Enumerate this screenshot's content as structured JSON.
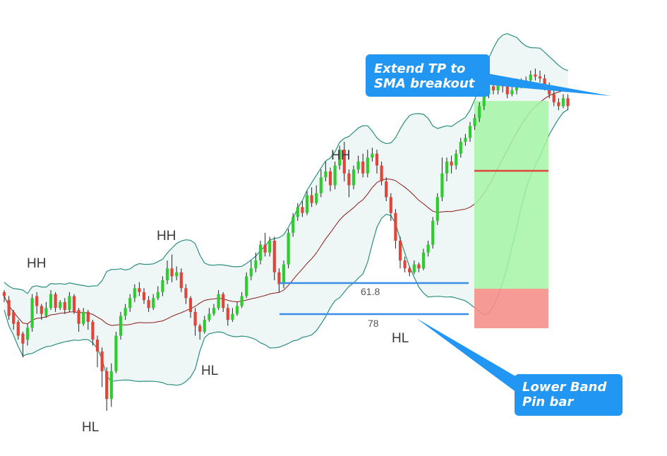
{
  "chart_data": {
    "type": "candlestick",
    "indicators": [
      "bollinger-bands",
      "sma"
    ],
    "candles": [
      [
        1.0,
        0.99,
        0.975,
        1.005
      ],
      [
        0.98,
        0.94,
        0.93,
        0.99
      ],
      [
        0.95,
        0.92,
        0.905,
        0.955
      ],
      [
        0.925,
        0.89,
        0.88,
        0.93
      ],
      [
        0.895,
        0.87,
        0.835,
        0.9
      ],
      [
        0.88,
        0.91,
        0.865,
        0.92
      ],
      [
        0.91,
        0.985,
        0.9,
        0.995
      ],
      [
        0.99,
        0.965,
        0.945,
        1.0
      ],
      [
        0.965,
        0.945,
        0.93,
        0.97
      ],
      [
        0.94,
        0.96,
        0.935,
        0.975
      ],
      [
        0.96,
        0.995,
        0.955,
        1.005
      ],
      [
        0.995,
        0.96,
        0.95,
        1.0
      ],
      [
        0.96,
        0.975,
        0.955,
        0.98
      ],
      [
        0.975,
        0.955,
        0.945,
        0.985
      ],
      [
        0.955,
        0.99,
        0.95,
        1.0
      ],
      [
        0.99,
        0.95,
        0.945,
        0.995
      ],
      [
        0.955,
        0.92,
        0.9,
        0.96
      ],
      [
        0.92,
        0.95,
        0.915,
        0.96
      ],
      [
        0.95,
        0.925,
        0.905,
        0.955
      ],
      [
        0.925,
        0.88,
        0.865,
        0.93
      ],
      [
        0.88,
        0.85,
        0.81,
        0.89
      ],
      [
        0.85,
        0.8,
        0.76,
        0.86
      ],
      [
        0.8,
        0.73,
        0.7,
        0.81
      ],
      [
        0.73,
        0.8,
        0.71,
        0.82
      ],
      [
        0.8,
        0.89,
        0.795,
        0.9
      ],
      [
        0.89,
        0.94,
        0.88,
        0.95
      ],
      [
        0.94,
        0.96,
        0.93,
        0.97
      ],
      [
        0.96,
        0.985,
        0.95,
        0.995
      ],
      [
        0.985,
        1.01,
        0.975,
        1.02
      ],
      [
        1.01,
        1.0,
        0.99,
        1.025
      ],
      [
        1.0,
        0.98,
        0.97,
        1.01
      ],
      [
        0.98,
        0.96,
        0.95,
        0.99
      ],
      [
        0.96,
        0.985,
        0.955,
        0.995
      ],
      [
        0.985,
        1.0,
        0.98,
        1.015
      ],
      [
        1.0,
        1.03,
        0.99,
        1.04
      ],
      [
        1.03,
        1.06,
        1.02,
        1.08
      ],
      [
        1.06,
        1.04,
        1.025,
        1.095
      ],
      [
        1.04,
        1.05,
        1.03,
        1.065
      ],
      [
        1.05,
        1.01,
        1.0,
        1.06
      ],
      [
        1.01,
        0.985,
        0.97,
        1.02
      ],
      [
        0.985,
        0.95,
        0.935,
        0.99
      ],
      [
        0.95,
        0.915,
        0.89,
        0.96
      ],
      [
        0.915,
        0.9,
        0.88,
        0.92
      ],
      [
        0.9,
        0.93,
        0.895,
        0.94
      ],
      [
        0.93,
        0.945,
        0.925,
        0.96
      ],
      [
        0.945,
        0.96,
        0.94,
        0.97
      ],
      [
        0.96,
        0.995,
        0.955,
        1.005
      ],
      [
        0.995,
        0.96,
        0.95,
        1.0
      ],
      [
        0.96,
        0.93,
        0.915,
        0.97
      ],
      [
        0.93,
        0.945,
        0.925,
        0.96
      ],
      [
        0.945,
        0.965,
        0.94,
        0.975
      ],
      [
        0.965,
        0.99,
        0.96,
        1.0
      ],
      [
        0.99,
        1.04,
        0.985,
        1.05
      ],
      [
        1.04,
        1.06,
        1.03,
        1.08
      ],
      [
        1.06,
        1.08,
        1.05,
        1.1
      ],
      [
        1.08,
        1.12,
        1.07,
        1.13
      ],
      [
        1.12,
        1.1,
        1.09,
        1.15
      ],
      [
        1.1,
        1.13,
        1.09,
        1.14
      ],
      [
        1.13,
        1.05,
        1.03,
        1.14
      ],
      [
        1.05,
        1.02,
        1.0,
        1.06
      ],
      [
        1.02,
        1.07,
        1.01,
        1.08
      ],
      [
        1.07,
        1.15,
        1.06,
        1.16
      ],
      [
        1.15,
        1.19,
        1.14,
        1.2
      ],
      [
        1.19,
        1.215,
        1.18,
        1.225
      ],
      [
        1.215,
        1.2,
        1.19,
        1.23
      ],
      [
        1.2,
        1.245,
        1.195,
        1.255
      ],
      [
        1.245,
        1.225,
        1.215,
        1.265
      ],
      [
        1.225,
        1.25,
        1.22,
        1.27
      ],
      [
        1.25,
        1.29,
        1.24,
        1.31
      ],
      [
        1.29,
        1.305,
        1.28,
        1.33
      ],
      [
        1.305,
        1.27,
        1.255,
        1.315
      ],
      [
        1.27,
        1.32,
        1.26,
        1.33
      ],
      [
        1.32,
        1.36,
        1.31,
        1.37
      ],
      [
        1.36,
        1.3,
        1.28,
        1.38
      ],
      [
        1.3,
        1.27,
        1.24,
        1.31
      ],
      [
        1.27,
        1.31,
        1.26,
        1.32
      ],
      [
        1.31,
        1.33,
        1.3,
        1.345
      ],
      [
        1.33,
        1.3,
        1.29,
        1.35
      ],
      [
        1.3,
        1.34,
        1.29,
        1.36
      ],
      [
        1.34,
        1.35,
        1.33,
        1.365
      ],
      [
        1.35,
        1.32,
        1.3,
        1.36
      ],
      [
        1.32,
        1.28,
        1.27,
        1.33
      ],
      [
        1.28,
        1.24,
        1.23,
        1.29
      ],
      [
        1.24,
        1.2,
        1.18,
        1.25
      ],
      [
        1.2,
        1.13,
        1.11,
        1.21
      ],
      [
        1.13,
        1.08,
        1.06,
        1.14
      ],
      [
        1.08,
        1.06,
        1.05,
        1.09
      ],
      [
        1.06,
        1.05,
        1.04,
        1.065
      ],
      [
        1.05,
        1.07,
        1.045,
        1.08
      ],
      [
        1.07,
        1.06,
        1.05,
        1.075
      ],
      [
        1.06,
        1.1,
        1.055,
        1.11
      ],
      [
        1.1,
        1.12,
        1.09,
        1.13
      ],
      [
        1.12,
        1.18,
        1.11,
        1.19
      ],
      [
        1.18,
        1.24,
        1.17,
        1.25
      ],
      [
        1.24,
        1.3,
        1.23,
        1.34
      ],
      [
        1.3,
        1.33,
        1.28,
        1.34
      ],
      [
        1.33,
        1.32,
        1.3,
        1.345
      ],
      [
        1.32,
        1.35,
        1.31,
        1.36
      ],
      [
        1.35,
        1.38,
        1.34,
        1.39
      ],
      [
        1.38,
        1.39,
        1.37,
        1.4
      ],
      [
        1.39,
        1.42,
        1.38,
        1.43
      ],
      [
        1.42,
        1.44,
        1.41,
        1.45
      ],
      [
        1.44,
        1.47,
        1.43,
        1.48
      ],
      [
        1.47,
        1.5,
        1.46,
        1.51
      ],
      [
        1.5,
        1.52,
        1.49,
        1.53
      ],
      [
        1.52,
        1.51,
        1.5,
        1.54
      ],
      [
        1.51,
        1.53,
        1.5,
        1.54
      ],
      [
        1.53,
        1.52,
        1.505,
        1.545
      ],
      [
        1.52,
        1.5,
        1.49,
        1.53
      ],
      [
        1.5,
        1.51,
        1.495,
        1.52
      ],
      [
        1.51,
        1.53,
        1.5,
        1.54
      ],
      [
        1.53,
        1.525,
        1.515,
        1.54
      ],
      [
        1.525,
        1.535,
        1.52,
        1.545
      ],
      [
        1.535,
        1.55,
        1.53,
        1.56
      ],
      [
        1.55,
        1.545,
        1.535,
        1.565
      ],
      [
        1.545,
        1.54,
        1.53,
        1.56
      ],
      [
        1.54,
        1.52,
        1.51,
        1.55
      ],
      [
        1.52,
        1.5,
        1.49,
        1.53
      ],
      [
        1.5,
        1.48,
        1.47,
        1.51
      ],
      [
        1.48,
        1.47,
        1.46,
        1.49
      ],
      [
        1.47,
        1.49,
        1.465,
        1.5
      ],
      [
        1.49,
        1.47,
        1.46,
        1.5
      ]
    ]
  },
  "annotations": {
    "swing_labels": [
      {
        "text": "HH",
        "name": "hh-label-1"
      },
      {
        "text": "HL",
        "name": "hl-label-1"
      },
      {
        "text": "HH",
        "name": "hh-label-2"
      },
      {
        "text": "HL",
        "name": "hl-label-2"
      },
      {
        "text": "HH",
        "name": "hh-label-3"
      },
      {
        "text": "HL",
        "name": "hl-label-3"
      }
    ],
    "fib_618": "61.8",
    "fib_78": "78",
    "callout_tp_line1": "Extend TP to",
    "callout_tp_line2": "SMA breakout",
    "callout_pin_line1": "Lower Band",
    "callout_pin_line2": "Pin bar"
  },
  "colors": {
    "bull": "#2ecc2e",
    "bear": "#e0453a",
    "band_line": "#2a8f7f",
    "band_fill": "#eef6f6",
    "sma": "#8b1a1a",
    "fib_line": "#3a8ee8",
    "callout": "#2196f3",
    "profit_zone": "#a6f5a6",
    "loss_zone": "#f5908a",
    "entry_line": "#e0453a"
  }
}
